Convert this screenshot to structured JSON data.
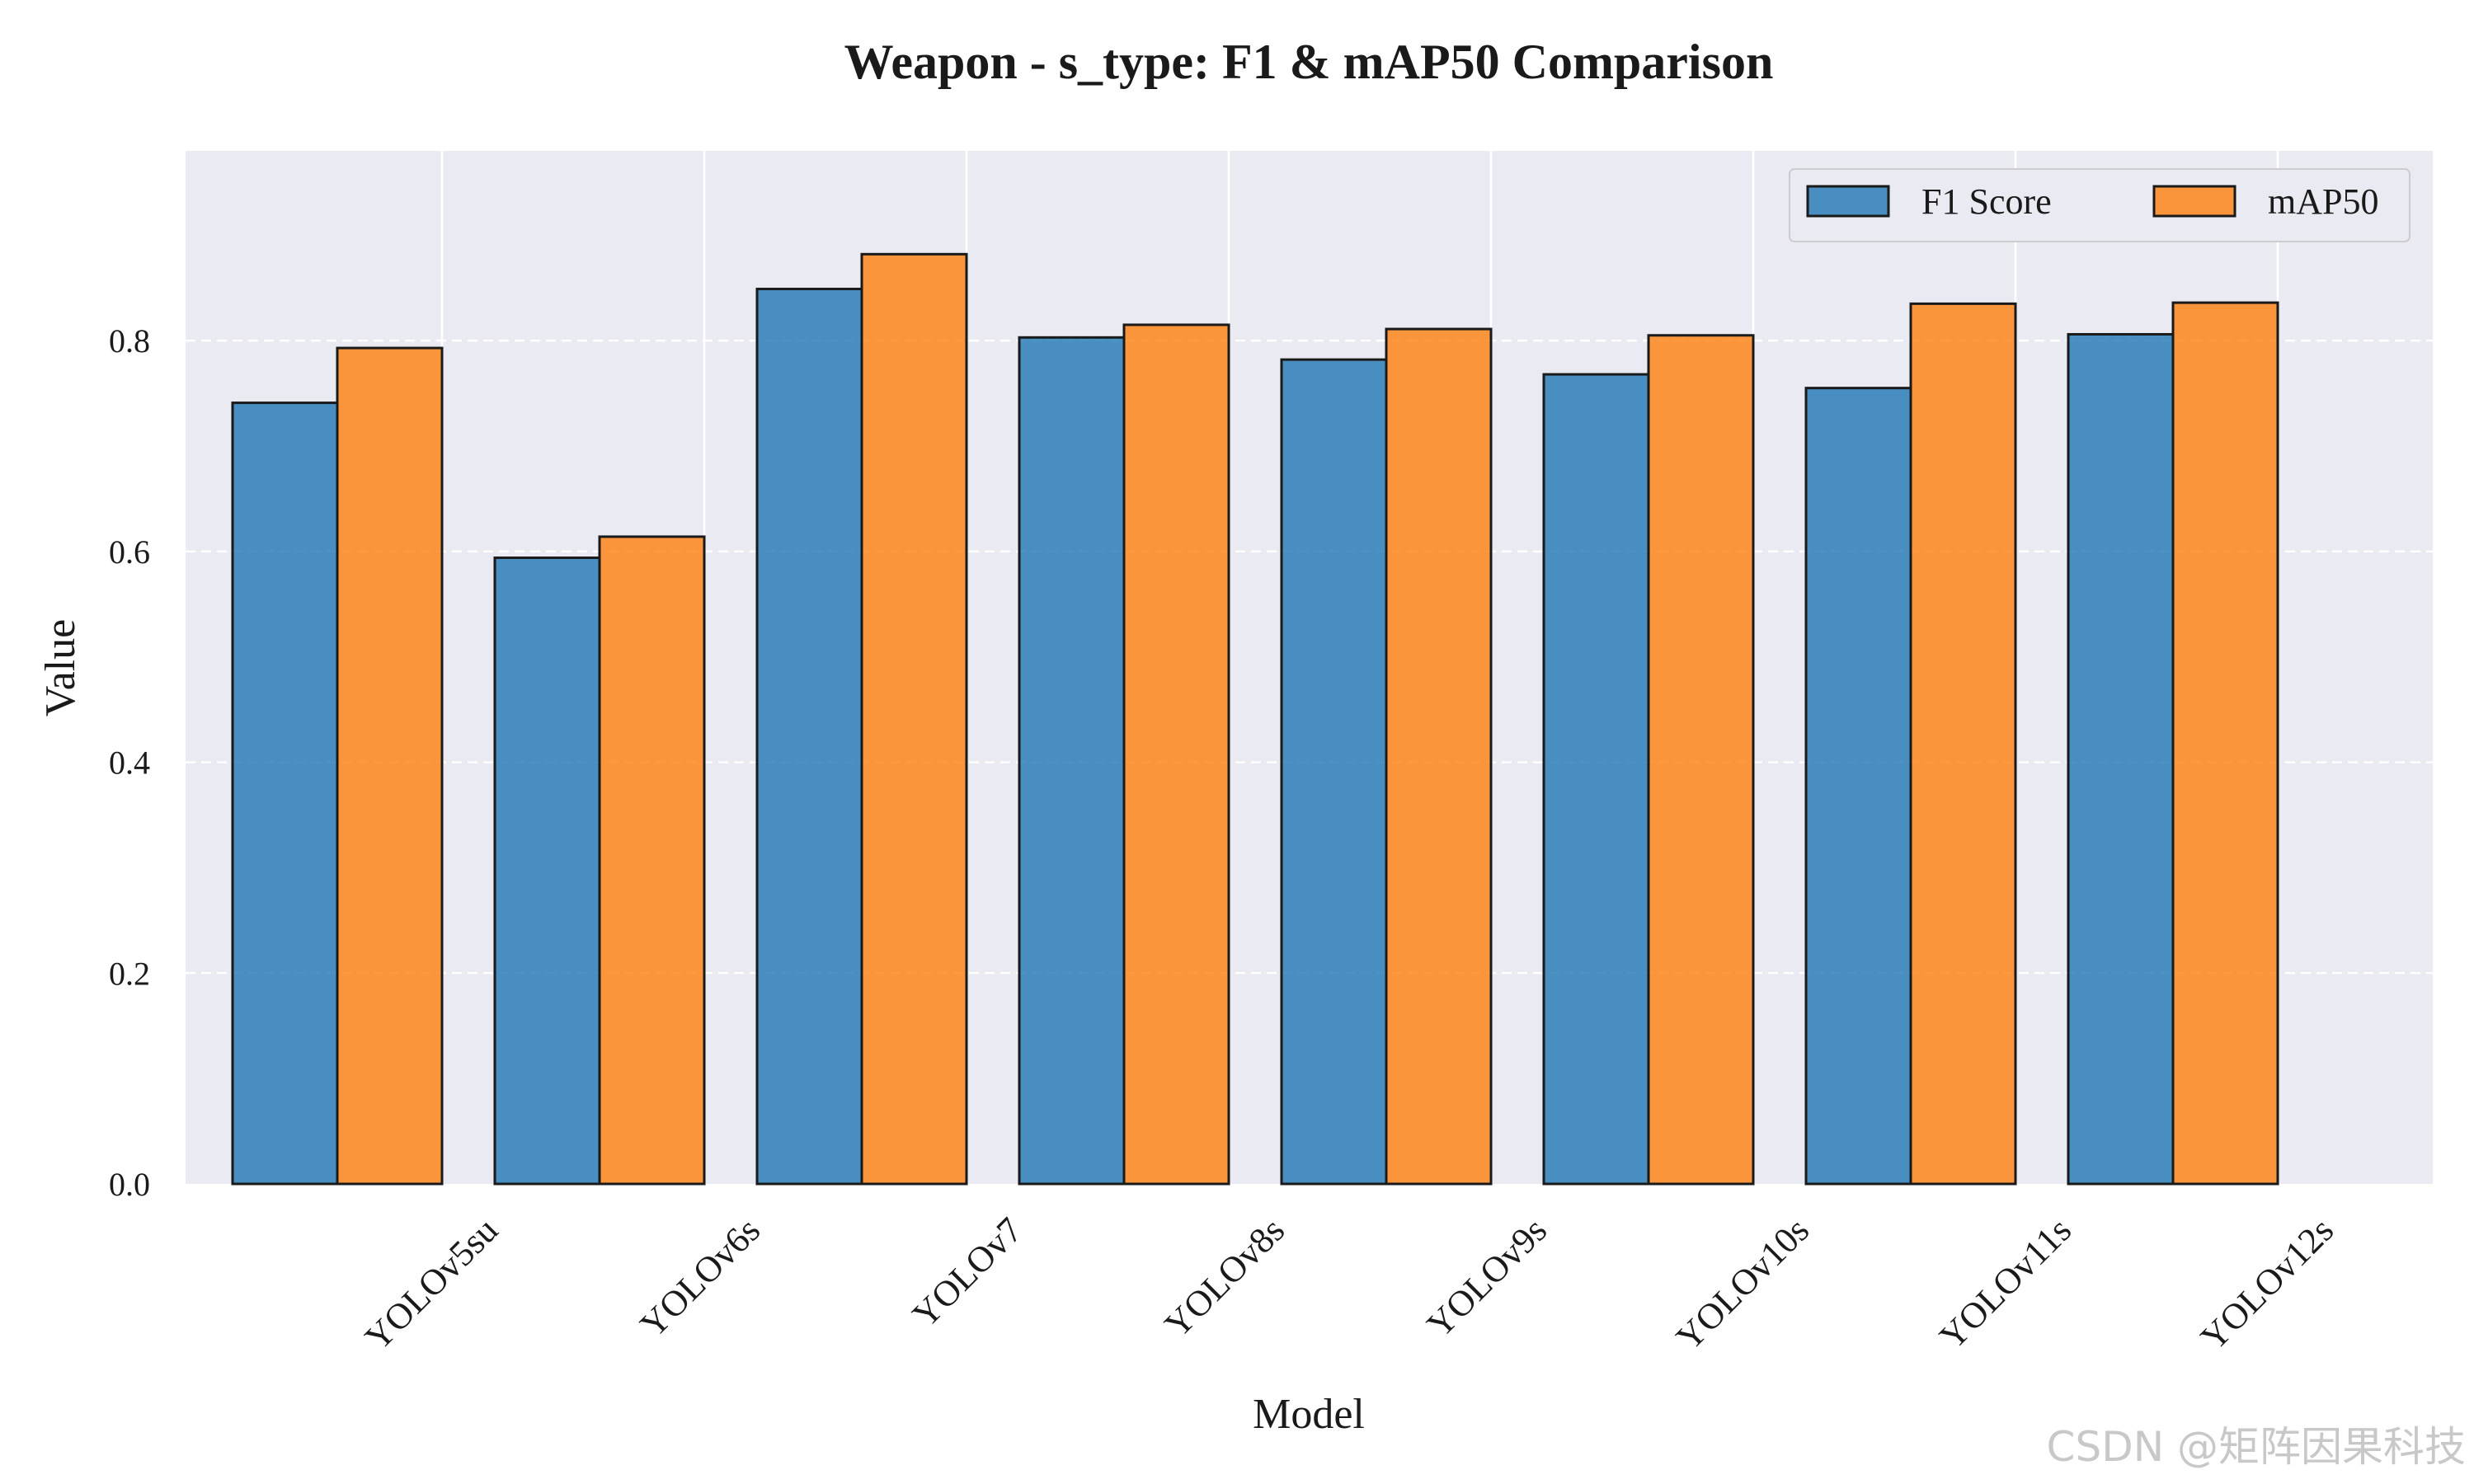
{
  "colors": {
    "plot_bg": "#eaeaf2",
    "grid": "#ffffff",
    "f1": "#1f77b4",
    "map50": "#ff7f0e",
    "edge": "#1a1a1a"
  },
  "watermark": "CSDN @矩阵因果科技",
  "chart_data": {
    "type": "bar",
    "title": "Weapon - s_type: F1 & mAP50 Comparison",
    "xlabel": "Model",
    "ylabel": "Value",
    "ylim": [
      0,
      0.98
    ],
    "yticks": [
      0.0,
      0.2,
      0.4,
      0.6,
      0.8
    ],
    "ytick_labels": [
      "0.0",
      "0.2",
      "0.4",
      "0.6",
      "0.8"
    ],
    "grid": true,
    "legend_position": "top-right",
    "categories": [
      "YOLOv5su",
      "YOLOv6s",
      "YOLOv7",
      "YOLOv8s",
      "YOLOv9s",
      "YOLOv10s",
      "YOLOv11s",
      "YOLOv12s"
    ],
    "series": [
      {
        "name": "F1 Score",
        "values": [
          0.741,
          0.594,
          0.849,
          0.803,
          0.782,
          0.768,
          0.755,
          0.806
        ]
      },
      {
        "name": "mAP50",
        "values": [
          0.793,
          0.614,
          0.882,
          0.815,
          0.811,
          0.805,
          0.835,
          0.836
        ]
      }
    ]
  }
}
